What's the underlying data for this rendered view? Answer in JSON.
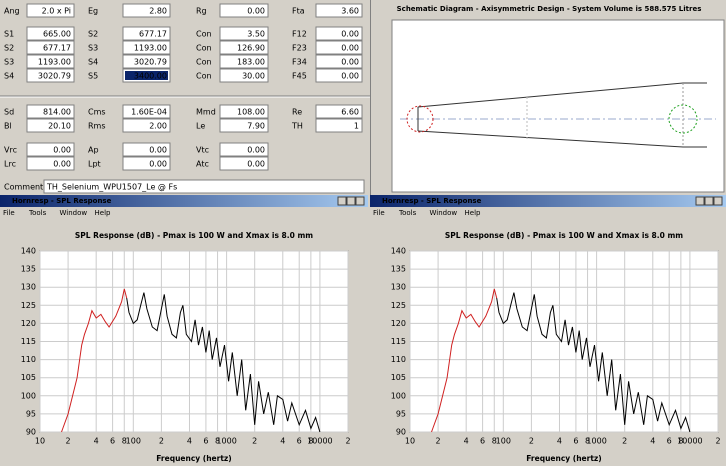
{
  "parameters": {
    "rows": [
      [
        {
          "label": "Ang",
          "value": "2.0 x Pi"
        },
        {
          "label": "Eg",
          "value": "2.80"
        },
        {
          "label": "Rg",
          "value": "0.00"
        },
        {
          "label": "Fta",
          "value": "3.60"
        }
      ],
      [
        {
          "label": "S1",
          "value": "665.00"
        },
        {
          "label": "S2",
          "value": "677.17"
        },
        {
          "label": "Con",
          "value": "3.50"
        },
        {
          "label": "F12",
          "value": "0.00"
        }
      ],
      [
        {
          "label": "S2",
          "value": "677.17"
        },
        {
          "label": "S3",
          "value": "1193.00"
        },
        {
          "label": "Con",
          "value": "126.90"
        },
        {
          "label": "F23",
          "value": "0.00"
        }
      ],
      [
        {
          "label": "S3",
          "value": "1193.00"
        },
        {
          "label": "S4",
          "value": "3020.79"
        },
        {
          "label": "Con",
          "value": "183.00"
        },
        {
          "label": "F34",
          "value": "0.00"
        }
      ],
      [
        {
          "label": "S4",
          "value": "3020.79"
        },
        {
          "label": "S5",
          "value": "3400.00"
        },
        {
          "label": "Con",
          "value": "30.00"
        },
        {
          "label": "F45",
          "value": "0.00"
        }
      ],
      [
        {
          "label": "Sd",
          "value": "814.00"
        },
        {
          "label": "Cms",
          "value": "1.60E-04"
        },
        {
          "label": "Mmd",
          "value": "108.00"
        },
        {
          "label": "Re",
          "value": "6.60"
        }
      ],
      [
        {
          "label": "Bl",
          "value": "20.10"
        },
        {
          "label": "Rms",
          "value": "2.00"
        },
        {
          "label": "Le",
          "value": "7.90"
        },
        {
          "label": "TH",
          "value": "1"
        }
      ],
      [
        {
          "label": "Vrc",
          "value": "0.00"
        },
        {
          "label": "Ap",
          "value": "0.00"
        },
        {
          "label": "Vtc",
          "value": "0.00"
        }
      ],
      [
        {
          "label": "Lrc",
          "value": "0.00"
        },
        {
          "label": "Lpt",
          "value": "0.00"
        },
        {
          "label": "Atc",
          "value": "0.00"
        }
      ]
    ],
    "comment": {
      "label": "Comment",
      "value": "TH_Selenium_WPU1507_Le @ Fs"
    }
  },
  "schematic": {
    "title": "Schematic Diagram - Axisymmetric Design - System Volume is 588.575 Litres"
  },
  "windows": [
    {
      "title": "Hornresp - SPL Response",
      "menu": [
        "File",
        "Tools",
        "Window",
        "Help"
      ]
    },
    {
      "title": "Hornresp - SPL Response",
      "menu": [
        "File",
        "Tools",
        "Window",
        "Help"
      ]
    }
  ],
  "chart_data": [
    {
      "type": "line",
      "title": "SPL Response (dB) - Pmax is 100 W and Xmax is 8.0 mm",
      "xlabel": "Frequency (hertz)",
      "xscale": "log",
      "grid": true,
      "xlim": [
        10,
        20000
      ],
      "ylim": [
        90,
        140
      ],
      "yticks": [
        90,
        95,
        100,
        105,
        110,
        115,
        120,
        125,
        130,
        135,
        140
      ],
      "xticks": [
        10,
        {
          "value": 20,
          "label": "2"
        },
        {
          "value": 40,
          "label": "4"
        },
        {
          "value": 60,
          "label": "6"
        },
        {
          "value": 80,
          "label": "8"
        },
        100,
        {
          "value": 200,
          "label": "2"
        },
        {
          "value": 400,
          "label": "4"
        },
        {
          "value": 600,
          "label": "6"
        },
        {
          "value": 800,
          "label": "8"
        },
        1000,
        {
          "value": 2000,
          "label": "2"
        },
        {
          "value": 4000,
          "label": "4"
        },
        {
          "value": 6000,
          "label": "6"
        },
        {
          "value": 8000,
          "label": "8"
        },
        10000,
        {
          "value": 20000,
          "label": "2"
        }
      ],
      "x": [
        17,
        20,
        25,
        28,
        30,
        33,
        36,
        40,
        45,
        50,
        55,
        65,
        75,
        80,
        85,
        90,
        100,
        110,
        120,
        130,
        140,
        160,
        180,
        200,
        215,
        230,
        260,
        290,
        320,
        340,
        370,
        420,
        460,
        500,
        550,
        600,
        650,
        700,
        780,
        850,
        950,
        1050,
        1150,
        1300,
        1450,
        1600,
        1800,
        2000,
        2200,
        2500,
        2800,
        3200,
        3500,
        4000,
        4500,
        5000,
        6000,
        7000,
        8000,
        9000,
        10000
      ],
      "series": [
        {
          "color": "#d02020",
          "values": [
            90,
            95,
            105,
            114,
            117,
            120,
            123.5,
            121.5,
            122.5,
            120.5,
            119,
            122,
            126,
            129.5,
            127,
            null,
            null,
            null,
            null,
            null,
            null,
            null,
            null,
            null,
            null,
            null,
            null,
            null,
            null,
            null,
            null,
            null,
            null,
            null,
            null,
            null,
            null,
            null,
            null,
            null,
            null,
            null,
            null,
            null,
            null,
            null,
            null,
            null,
            null,
            null,
            null,
            null,
            null,
            null,
            null,
            null,
            null,
            null,
            null,
            null,
            null
          ]
        },
        {
          "color": "#000000",
          "values": [
            null,
            null,
            null,
            null,
            null,
            null,
            null,
            null,
            null,
            null,
            null,
            null,
            null,
            null,
            127,
            123,
            120,
            121,
            125,
            128.5,
            124,
            119,
            118,
            124,
            128,
            122,
            117,
            116,
            123,
            125,
            117,
            115,
            121,
            114,
            119,
            112,
            118,
            110,
            116,
            108,
            114,
            104,
            112,
            100,
            110,
            96,
            106,
            92,
            104,
            95,
            101,
            92,
            100,
            99,
            93,
            98,
            92,
            96,
            91,
            94,
            90
          ]
        }
      ]
    },
    {
      "type": "line",
      "title": "SPL Response (dB) - Pmax is 100 W and Xmax is 8.0 mm",
      "xlabel": "Frequency (hertz)",
      "xscale": "log",
      "grid": true,
      "xlim": [
        10,
        20000
      ],
      "ylim": [
        90,
        140
      ],
      "yticks": [
        90,
        95,
        100,
        105,
        110,
        115,
        120,
        125,
        130,
        135,
        140
      ],
      "xticks": [
        10,
        {
          "value": 20,
          "label": "2"
        },
        {
          "value": 40,
          "label": "4"
        },
        {
          "value": 60,
          "label": "6"
        },
        {
          "value": 80,
          "label": "8"
        },
        100,
        {
          "value": 200,
          "label": "2"
        },
        {
          "value": 400,
          "label": "4"
        },
        {
          "value": 600,
          "label": "6"
        },
        {
          "value": 800,
          "label": "8"
        },
        1000,
        {
          "value": 2000,
          "label": "2"
        },
        {
          "value": 4000,
          "label": "4"
        },
        {
          "value": 6000,
          "label": "6"
        },
        {
          "value": 8000,
          "label": "8"
        },
        10000,
        {
          "value": 20000,
          "label": "2"
        }
      ],
      "x": [
        17,
        20,
        25,
        28,
        30,
        33,
        36,
        40,
        45,
        50,
        55,
        65,
        75,
        80,
        85,
        90,
        100,
        110,
        120,
        130,
        140,
        160,
        180,
        200,
        215,
        230,
        260,
        290,
        320,
        340,
        370,
        420,
        460,
        500,
        550,
        600,
        650,
        700,
        780,
        850,
        950,
        1050,
        1150,
        1300,
        1450,
        1600,
        1800,
        2000,
        2200,
        2500,
        2800,
        3200,
        3500,
        4000,
        4500,
        5000,
        6000,
        7000,
        8000,
        9000,
        10000
      ],
      "series": [
        {
          "color": "#d02020",
          "values": [
            90,
            95,
            105,
            114,
            117,
            120,
            123.5,
            121.5,
            122.5,
            120.5,
            119,
            122,
            126,
            129.5,
            127,
            null,
            null,
            null,
            null,
            null,
            null,
            null,
            null,
            null,
            null,
            null,
            null,
            null,
            null,
            null,
            null,
            null,
            null,
            null,
            null,
            null,
            null,
            null,
            null,
            null,
            null,
            null,
            null,
            null,
            null,
            null,
            null,
            null,
            null,
            null,
            null,
            null,
            null,
            null,
            null,
            null,
            null,
            null,
            null,
            null,
            null
          ]
        },
        {
          "color": "#000000",
          "values": [
            null,
            null,
            null,
            null,
            null,
            null,
            null,
            null,
            null,
            null,
            null,
            null,
            null,
            null,
            127,
            123,
            120,
            121,
            125,
            128.5,
            124,
            119,
            118,
            124,
            128,
            122,
            117,
            116,
            123,
            125,
            117,
            115,
            121,
            114,
            119,
            112,
            118,
            110,
            116,
            108,
            114,
            104,
            112,
            100,
            110,
            96,
            106,
            92,
            104,
            95,
            101,
            92,
            100,
            99,
            93,
            98,
            92,
            96,
            91,
            94,
            90
          ]
        }
      ]
    }
  ]
}
